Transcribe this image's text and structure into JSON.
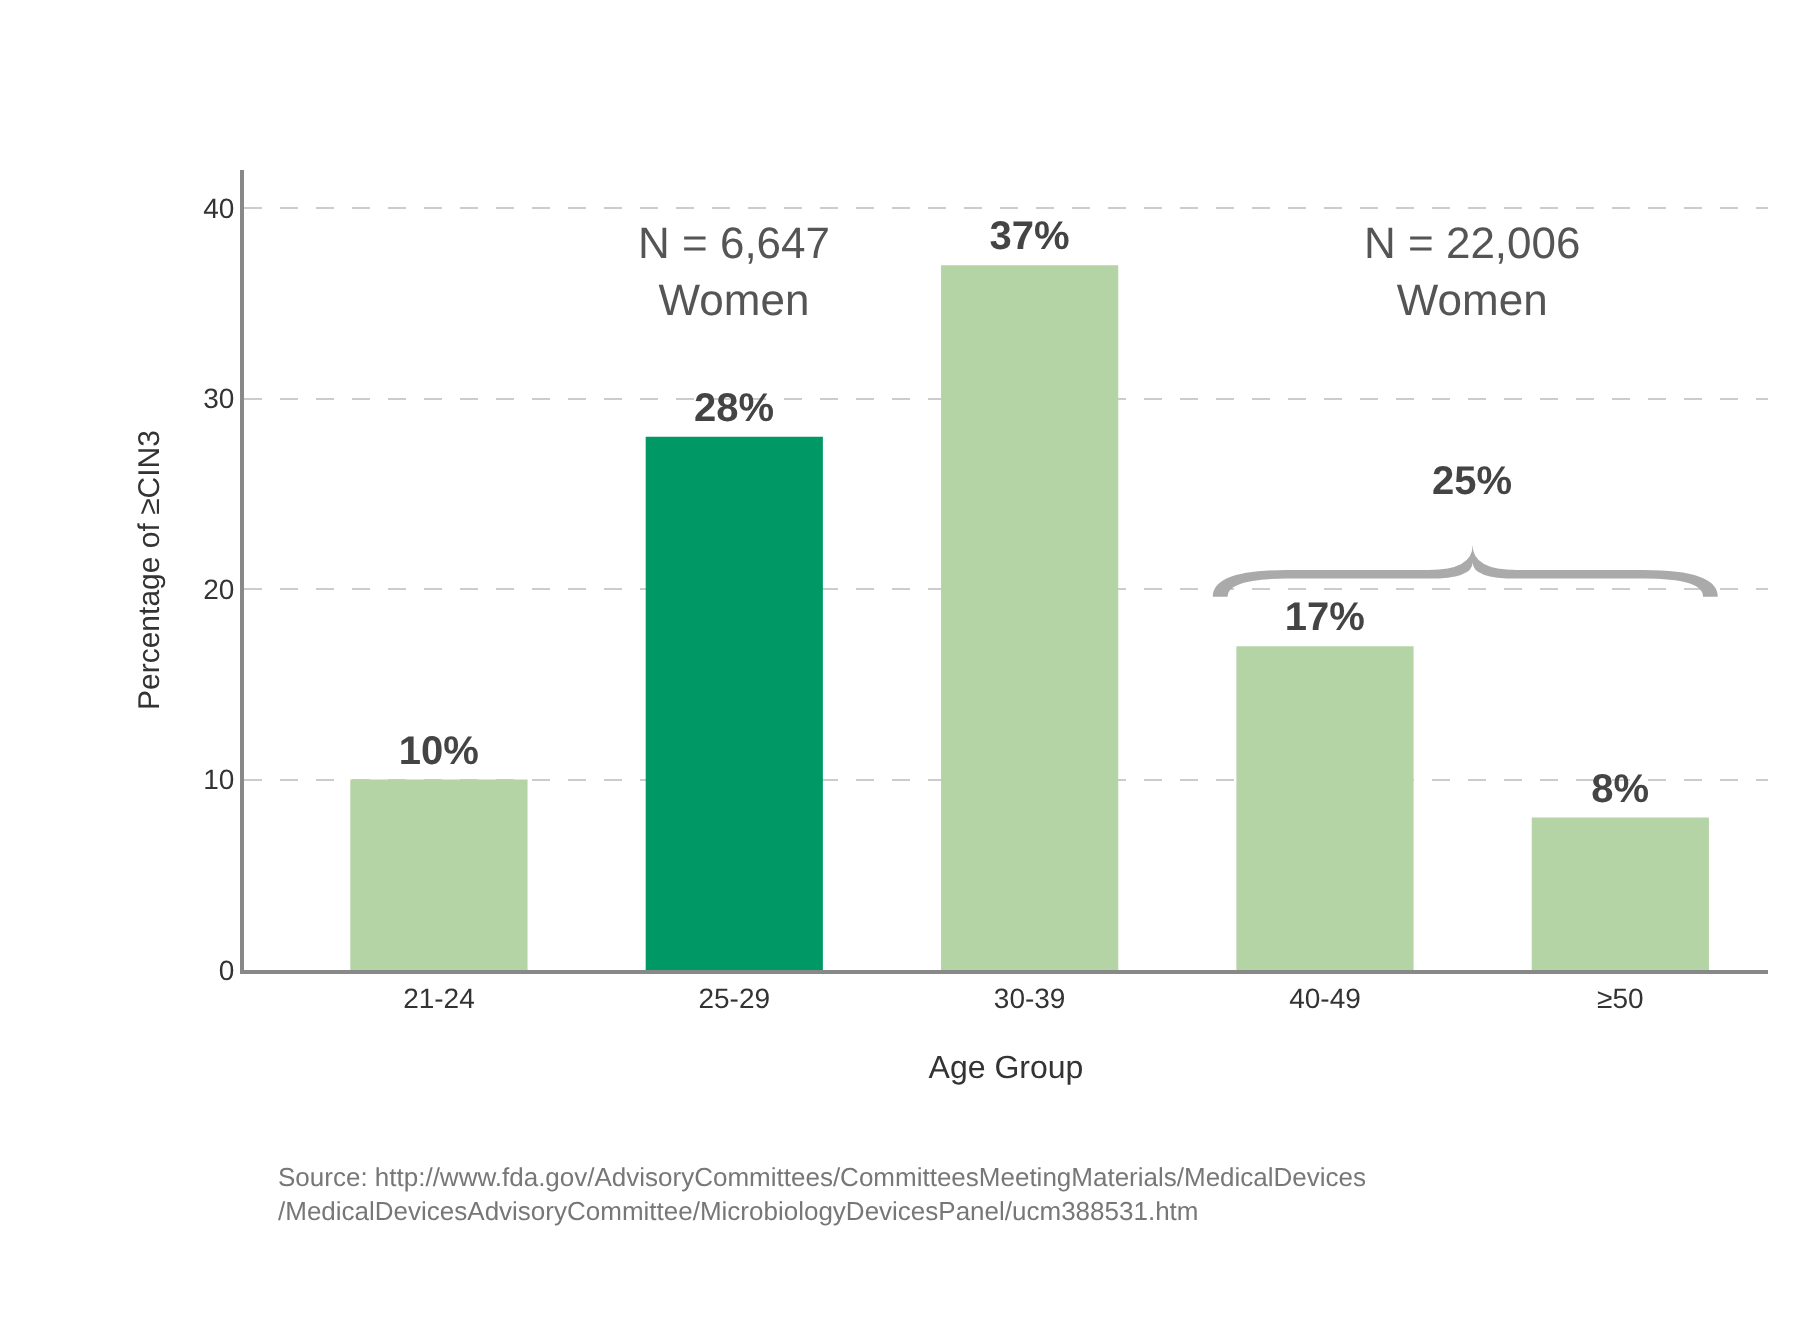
{
  "chart_data": {
    "type": "bar",
    "xlabel": "Age Group",
    "ylabel": "Percentage of ≥CIN3",
    "categories": [
      "21-24",
      "25-29",
      "30-39",
      "40-49",
      "≥50"
    ],
    "values": [
      10,
      28,
      37,
      17,
      8
    ],
    "colors": [
      "#b5d4a6",
      "#009966",
      "#b5d4a6",
      "#b5d4a6",
      "#b5d4a6"
    ],
    "value_labels": [
      "10%",
      "28%",
      "37%",
      "17%",
      "8%"
    ],
    "ylim": [
      0,
      42
    ],
    "yticks": [
      0,
      10,
      20,
      30,
      40
    ],
    "grid": "y",
    "annotations": [
      "N = 6,647\nWomen",
      "N = 22,006\nWomen",
      "25%",
      "Source: http://www.fda.gov/AdvisoryCommittees/CommitteesMeetingMaterials/MedicalDevices\n/MedicalDevicesAdvisoryCommittee/MicrobiologyDevicesPanel/ucm388531.htm"
    ]
  }
}
